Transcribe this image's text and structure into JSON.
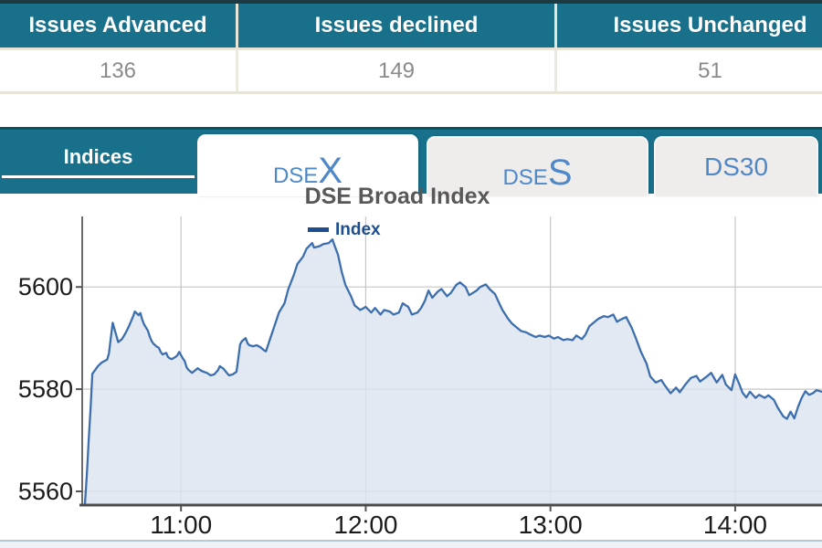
{
  "summary_table": {
    "columns": [
      {
        "header": "Issues Advanced",
        "value": "136"
      },
      {
        "header": "Issues declined",
        "value": "149"
      },
      {
        "header": "Issues Unchanged",
        "value": "51"
      }
    ]
  },
  "tab_bar": {
    "panel_label": "Indices",
    "tabs": [
      {
        "prefix": "DSE",
        "suffix": "X",
        "state": "active"
      },
      {
        "prefix": "DSE",
        "suffix": "S",
        "state": "inactive"
      },
      {
        "prefix": "DS30",
        "suffix": "",
        "state": "inactive"
      }
    ]
  },
  "colors": {
    "header_teal": "#19708a",
    "band_dark_edge": "#0d5161",
    "tab_text_blue": "#4e88c9",
    "tab_inactive_bg": "#efedec",
    "table_separator": "#e8e4d7",
    "table_value_text": "#8a8a8a",
    "title_gray": "#58585a",
    "axis_text": "#1b1b1b",
    "gridline": "#c6c6c6",
    "axis_line": "#4c4c4c",
    "strip_border": "#b4c8da"
  },
  "chart_data": {
    "type": "area",
    "title": "DSE Broad Index",
    "legend": [
      {
        "label": "Index",
        "color": "#1d4f90"
      }
    ],
    "legend_position": "top",
    "grid": true,
    "x_axis": {
      "tick_labels": [
        "11:00",
        "12:00",
        "13:00",
        "14:00"
      ],
      "tick_hours": [
        11,
        12,
        13,
        14
      ],
      "range_hours": [
        10.47,
        14.47
      ]
    },
    "y_axis": {
      "ticks": [
        5560,
        5580,
        5600
      ],
      "range": [
        5557.5,
        5613.8
      ]
    },
    "series": [
      {
        "name": "Index",
        "line_color": "#3d6fae",
        "fill_color": "#dbe4f0",
        "points": [
          [
            10.48,
            5557.6
          ],
          [
            10.49,
            5563
          ],
          [
            10.5,
            5570
          ],
          [
            10.51,
            5576
          ],
          [
            10.52,
            5583
          ],
          [
            10.55,
            5584.5
          ],
          [
            10.57,
            5585.2
          ],
          [
            10.6,
            5585.8
          ],
          [
            10.61,
            5587
          ],
          [
            10.62,
            5590
          ],
          [
            10.63,
            5593
          ],
          [
            10.65,
            5590.5
          ],
          [
            10.66,
            5589.2
          ],
          [
            10.68,
            5589.8
          ],
          [
            10.7,
            5591
          ],
          [
            10.72,
            5592.5
          ],
          [
            10.74,
            5594.2
          ],
          [
            10.75,
            5595.2
          ],
          [
            10.77,
            5594.5
          ],
          [
            10.78,
            5594.9
          ],
          [
            10.79,
            5593.6
          ],
          [
            10.8,
            5592.7
          ],
          [
            10.82,
            5591.5
          ],
          [
            10.83,
            5590.4
          ],
          [
            10.84,
            5589.5
          ],
          [
            10.85,
            5588.9
          ],
          [
            10.87,
            5588.3
          ],
          [
            10.88,
            5588.1
          ],
          [
            10.89,
            5587.3
          ],
          [
            10.9,
            5586.8
          ],
          [
            10.92,
            5587.1
          ],
          [
            10.93,
            5586.3
          ],
          [
            10.94,
            5586
          ],
          [
            10.95,
            5585.9
          ],
          [
            10.97,
            5586.3
          ],
          [
            10.98,
            5586.6
          ],
          [
            10.99,
            5587.3
          ],
          [
            11.01,
            5586
          ],
          [
            11.02,
            5585.5
          ],
          [
            11.03,
            5584.3
          ],
          [
            11.04,
            5583.8
          ],
          [
            11.06,
            5583.2
          ],
          [
            11.08,
            5583.8
          ],
          [
            11.09,
            5584.1
          ],
          [
            11.11,
            5583.6
          ],
          [
            11.13,
            5583.3
          ],
          [
            11.14,
            5583.2
          ],
          [
            11.16,
            5582.7
          ],
          [
            11.18,
            5582.9
          ],
          [
            11.2,
            5583.7
          ],
          [
            11.21,
            5584.5
          ],
          [
            11.23,
            5584
          ],
          [
            11.25,
            5583.1
          ],
          [
            11.26,
            5582.7
          ],
          [
            11.28,
            5582.9
          ],
          [
            11.3,
            5583.4
          ],
          [
            11.31,
            5586
          ],
          [
            11.32,
            5588.8
          ],
          [
            11.33,
            5589.4
          ],
          [
            11.35,
            5590
          ],
          [
            11.36,
            5589
          ],
          [
            11.37,
            5588.6
          ],
          [
            11.39,
            5588.4
          ],
          [
            11.41,
            5588.6
          ],
          [
            11.43,
            5588.2
          ],
          [
            11.45,
            5587.6
          ],
          [
            11.46,
            5587.4
          ],
          [
            11.48,
            5589.6
          ],
          [
            11.51,
            5592.8
          ],
          [
            11.53,
            5595
          ],
          [
            11.56,
            5596.8
          ],
          [
            11.58,
            5599.5
          ],
          [
            11.61,
            5602.3
          ],
          [
            11.63,
            5604.5
          ],
          [
            11.66,
            5605.9
          ],
          [
            11.68,
            5607.5
          ],
          [
            11.71,
            5608.6
          ],
          [
            11.72,
            5607.7
          ],
          [
            11.75,
            5608
          ],
          [
            11.77,
            5608.4
          ],
          [
            11.8,
            5608.6
          ],
          [
            11.82,
            5609.3
          ],
          [
            11.83,
            5608.2
          ],
          [
            11.85,
            5606.3
          ],
          [
            11.87,
            5603
          ],
          [
            11.89,
            5600.4
          ],
          [
            11.92,
            5598.2
          ],
          [
            11.94,
            5596.4
          ],
          [
            11.97,
            5595.5
          ],
          [
            11.99,
            5595.9
          ],
          [
            12.0,
            5596.1
          ],
          [
            12.03,
            5595
          ],
          [
            12.05,
            5595.9
          ],
          [
            12.08,
            5594.6
          ],
          [
            12.1,
            5595.5
          ],
          [
            12.13,
            5595.2
          ],
          [
            12.15,
            5594.6
          ],
          [
            12.18,
            5595
          ],
          [
            12.2,
            5596.8
          ],
          [
            12.23,
            5596.1
          ],
          [
            12.25,
            5594.6
          ],
          [
            12.28,
            5595
          ],
          [
            12.3,
            5595.9
          ],
          [
            12.32,
            5597.3
          ],
          [
            12.34,
            5599.3
          ],
          [
            12.36,
            5597.9
          ],
          [
            12.39,
            5599.1
          ],
          [
            12.41,
            5599.6
          ],
          [
            12.44,
            5598.2
          ],
          [
            12.46,
            5598.8
          ],
          [
            12.49,
            5600.4
          ],
          [
            12.51,
            5600.9
          ],
          [
            12.54,
            5600
          ],
          [
            12.56,
            5598.4
          ],
          [
            12.6,
            5599.3
          ],
          [
            12.62,
            5600
          ],
          [
            12.65,
            5600.5
          ],
          [
            12.67,
            5599.6
          ],
          [
            12.7,
            5598.6
          ],
          [
            12.72,
            5597
          ],
          [
            12.74,
            5595.5
          ],
          [
            12.77,
            5593.8
          ],
          [
            12.79,
            5592.9
          ],
          [
            12.82,
            5592
          ],
          [
            12.84,
            5591.4
          ],
          [
            12.87,
            5591.1
          ],
          [
            12.89,
            5590.7
          ],
          [
            12.92,
            5590.2
          ],
          [
            12.94,
            5590.5
          ],
          [
            12.97,
            5590.2
          ],
          [
            12.99,
            5590.5
          ],
          [
            13.02,
            5589.9
          ],
          [
            13.04,
            5590.2
          ],
          [
            13.07,
            5589.6
          ],
          [
            13.09,
            5589.8
          ],
          [
            13.12,
            5589.6
          ],
          [
            13.14,
            5590.5
          ],
          [
            13.17,
            5589.8
          ],
          [
            13.19,
            5590.7
          ],
          [
            13.21,
            5592.3
          ],
          [
            13.24,
            5593.2
          ],
          [
            13.26,
            5593.8
          ],
          [
            13.29,
            5594.3
          ],
          [
            13.31,
            5594.1
          ],
          [
            13.34,
            5594.6
          ],
          [
            13.36,
            5593.2
          ],
          [
            13.39,
            5593.8
          ],
          [
            13.41,
            5594.1
          ],
          [
            13.44,
            5592
          ],
          [
            13.46,
            5590.2
          ],
          [
            13.49,
            5587.3
          ],
          [
            13.52,
            5585
          ],
          [
            13.54,
            5582.5
          ],
          [
            13.57,
            5581.3
          ],
          [
            13.6,
            5581.8
          ],
          [
            13.62,
            5580.7
          ],
          [
            13.65,
            5579.2
          ],
          [
            13.68,
            5580.3
          ],
          [
            13.7,
            5579.4
          ],
          [
            13.73,
            5580.9
          ],
          [
            13.76,
            5582.2
          ],
          [
            13.79,
            5582.6
          ],
          [
            13.81,
            5581.5
          ],
          [
            13.84,
            5582.3
          ],
          [
            13.87,
            5583.2
          ],
          [
            13.9,
            5581.3
          ],
          [
            13.93,
            5582.8
          ],
          [
            13.95,
            5580.9
          ],
          [
            13.98,
            5579.8
          ],
          [
            14.0,
            5582.9
          ],
          [
            14.02,
            5581.2
          ],
          [
            14.04,
            5579.3
          ],
          [
            14.06,
            5578.4
          ],
          [
            14.08,
            5579.5
          ],
          [
            14.11,
            5578.3
          ],
          [
            14.13,
            5578.9
          ],
          [
            14.16,
            5578.3
          ],
          [
            14.18,
            5578.8
          ],
          [
            14.21,
            5577.9
          ],
          [
            14.23,
            5576.4
          ],
          [
            14.26,
            5574.7
          ],
          [
            14.28,
            5574.2
          ],
          [
            14.3,
            5575.6
          ],
          [
            14.32,
            5574.3
          ],
          [
            14.34,
            5576.5
          ],
          [
            14.36,
            5578.3
          ],
          [
            14.38,
            5579.6
          ],
          [
            14.4,
            5578.9
          ],
          [
            14.42,
            5579.2
          ],
          [
            14.44,
            5579.8
          ],
          [
            14.47,
            5579.5
          ]
        ]
      }
    ]
  }
}
